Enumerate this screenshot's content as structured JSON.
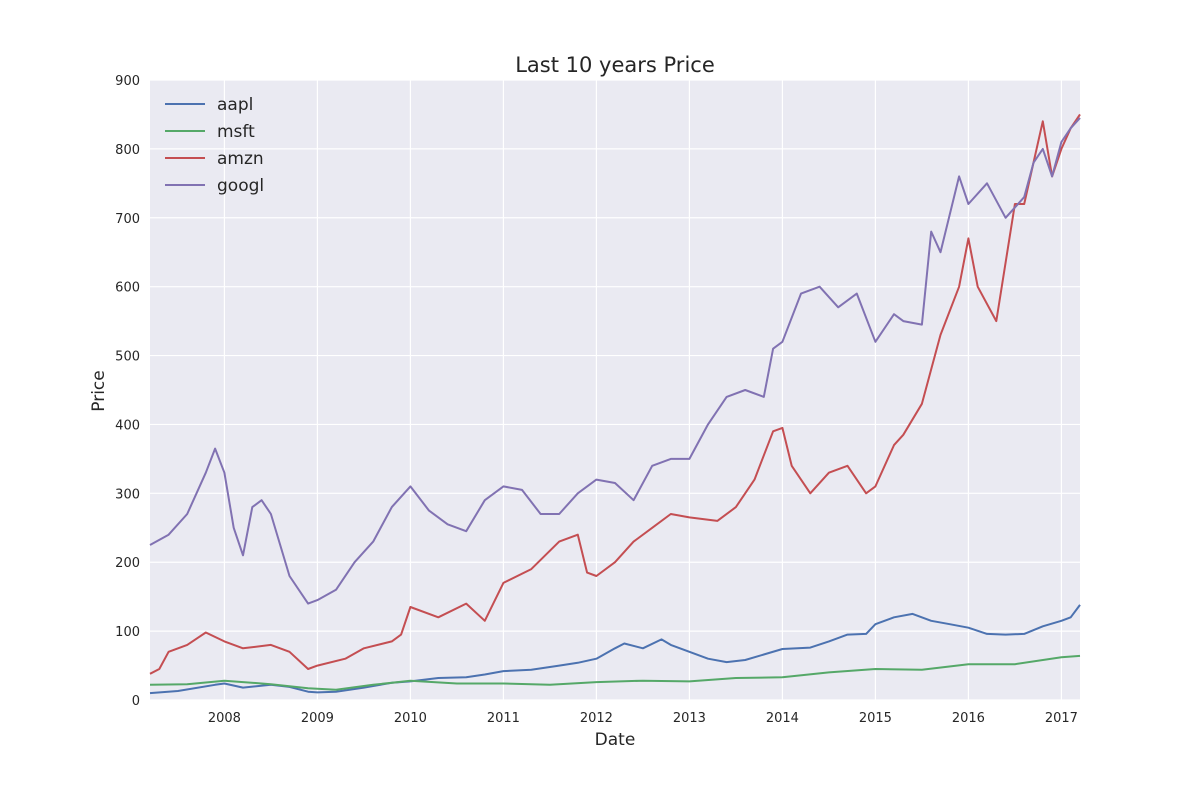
{
  "chart_data": {
    "type": "line",
    "title": "Last 10 years Price",
    "xlabel": "Date",
    "ylabel": "Price",
    "xlim": [
      2007.2,
      2017.2
    ],
    "ylim": [
      0,
      900
    ],
    "x_ticks": [
      2008,
      2009,
      2010,
      2011,
      2012,
      2013,
      2014,
      2015,
      2016,
      2017
    ],
    "x_tick_labels": [
      "2008",
      "2009",
      "2010",
      "2011",
      "2012",
      "2013",
      "2014",
      "2015",
      "2016",
      "2017"
    ],
    "y_ticks": [
      0,
      100,
      200,
      300,
      400,
      500,
      600,
      700,
      800,
      900
    ],
    "y_tick_labels": [
      "0",
      "100",
      "200",
      "300",
      "400",
      "500",
      "600",
      "700",
      "800",
      "900"
    ],
    "grid": true,
    "background": "#eaeaf2",
    "legend_position": "top-left",
    "series": [
      {
        "name": "aapl",
        "color": "#4c72b0",
        "x": [
          2007.2,
          2007.5,
          2007.9,
          2008.0,
          2008.2,
          2008.5,
          2008.7,
          2008.9,
          2009.0,
          2009.2,
          2009.5,
          2009.8,
          2010.0,
          2010.3,
          2010.6,
          2010.8,
          2011.0,
          2011.3,
          2011.6,
          2011.8,
          2012.0,
          2012.2,
          2012.3,
          2012.5,
          2012.7,
          2012.8,
          2013.0,
          2013.2,
          2013.4,
          2013.6,
          2013.8,
          2014.0,
          2014.3,
          2014.5,
          2014.7,
          2014.9,
          2015.0,
          2015.2,
          2015.4,
          2015.6,
          2015.8,
          2016.0,
          2016.2,
          2016.4,
          2016.6,
          2016.8,
          2017.0,
          2017.1,
          2017.2
        ],
        "y": [
          10,
          13,
          22,
          24,
          18,
          22,
          19,
          12,
          11,
          12,
          18,
          25,
          27,
          32,
          33,
          37,
          42,
          44,
          50,
          54,
          60,
          75,
          82,
          75,
          88,
          80,
          70,
          60,
          55,
          58,
          66,
          74,
          76,
          85,
          95,
          96,
          110,
          120,
          125,
          115,
          110,
          105,
          96,
          95,
          96,
          107,
          115,
          120,
          138
        ]
      },
      {
        "name": "msft",
        "color": "#55a868",
        "x": [
          2007.2,
          2007.6,
          2008.0,
          2008.5,
          2008.9,
          2009.2,
          2009.6,
          2010.0,
          2010.5,
          2011.0,
          2011.5,
          2012.0,
          2012.5,
          2013.0,
          2013.5,
          2014.0,
          2014.5,
          2015.0,
          2015.5,
          2016.0,
          2016.5,
          2017.0,
          2017.2
        ],
        "y": [
          22,
          23,
          28,
          23,
          17,
          15,
          22,
          28,
          24,
          24,
          22,
          26,
          28,
          27,
          32,
          33,
          40,
          45,
          44,
          52,
          52,
          62,
          64
        ]
      },
      {
        "name": "amzn",
        "color": "#c44e52",
        "x": [
          2007.2,
          2007.3,
          2007.4,
          2007.6,
          2007.8,
          2008.0,
          2008.2,
          2008.5,
          2008.7,
          2008.9,
          2009.0,
          2009.3,
          2009.5,
          2009.8,
          2009.9,
          2010.0,
          2010.3,
          2010.6,
          2010.8,
          2011.0,
          2011.3,
          2011.6,
          2011.8,
          2011.9,
          2012.0,
          2012.2,
          2012.4,
          2012.6,
          2012.8,
          2013.0,
          2013.3,
          2013.5,
          2013.7,
          2013.9,
          2014.0,
          2014.1,
          2014.3,
          2014.5,
          2014.7,
          2014.9,
          2015.0,
          2015.2,
          2015.3,
          2015.5,
          2015.6,
          2015.7,
          2015.9,
          2016.0,
          2016.1,
          2016.3,
          2016.5,
          2016.6,
          2016.8,
          2016.9,
          2017.0,
          2017.1,
          2017.2
        ],
        "y": [
          38,
          45,
          70,
          80,
          98,
          85,
          75,
          80,
          70,
          45,
          50,
          60,
          75,
          85,
          95,
          135,
          120,
          140,
          115,
          170,
          190,
          230,
          240,
          185,
          180,
          200,
          230,
          250,
          270,
          265,
          260,
          280,
          320,
          390,
          395,
          340,
          300,
          330,
          340,
          300,
          310,
          370,
          385,
          430,
          480,
          530,
          600,
          670,
          600,
          550,
          720,
          720,
          840,
          760,
          800,
          830,
          850
        ]
      },
      {
        "name": "googl",
        "color": "#8172b2",
        "x": [
          2007.2,
          2007.4,
          2007.6,
          2007.8,
          2007.9,
          2008.0,
          2008.1,
          2008.2,
          2008.3,
          2008.4,
          2008.5,
          2008.7,
          2008.9,
          2009.0,
          2009.2,
          2009.4,
          2009.6,
          2009.8,
          2010.0,
          2010.2,
          2010.4,
          2010.6,
          2010.8,
          2011.0,
          2011.2,
          2011.4,
          2011.6,
          2011.8,
          2012.0,
          2012.2,
          2012.4,
          2012.6,
          2012.8,
          2013.0,
          2013.2,
          2013.4,
          2013.6,
          2013.8,
          2013.9,
          2014.0,
          2014.2,
          2014.4,
          2014.6,
          2014.8,
          2015.0,
          2015.2,
          2015.3,
          2015.5,
          2015.6,
          2015.7,
          2015.9,
          2016.0,
          2016.2,
          2016.4,
          2016.6,
          2016.7,
          2016.8,
          2016.9,
          2017.0,
          2017.1,
          2017.2
        ],
        "y": [
          225,
          240,
          270,
          330,
          365,
          330,
          250,
          210,
          280,
          290,
          270,
          180,
          140,
          145,
          160,
          200,
          230,
          280,
          310,
          275,
          255,
          245,
          290,
          310,
          305,
          270,
          270,
          300,
          320,
          315,
          290,
          340,
          350,
          350,
          400,
          440,
          450,
          440,
          510,
          520,
          590,
          600,
          570,
          590,
          520,
          560,
          550,
          545,
          680,
          650,
          760,
          720,
          750,
          700,
          730,
          780,
          800,
          760,
          810,
          830,
          845
        ]
      }
    ]
  }
}
